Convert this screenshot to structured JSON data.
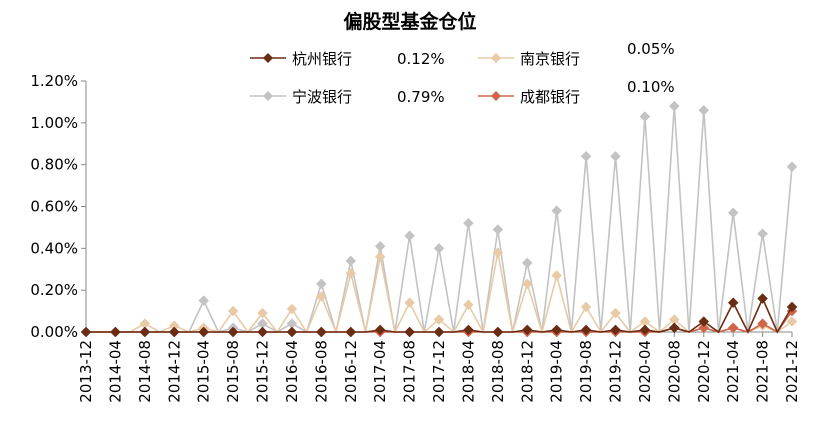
{
  "chart_data": {
    "type": "line",
    "title": "偏股型基金仓位",
    "xlabel": "",
    "ylabel": "",
    "ylim": [
      0,
      1.2
    ],
    "y_ticks": [
      "0.00%",
      "0.20%",
      "0.40%",
      "0.60%",
      "0.80%",
      "1.00%",
      "1.20%"
    ],
    "x": [
      "2013-12",
      "2014-02",
      "2014-04",
      "2014-06",
      "2014-08",
      "2014-10",
      "2014-12",
      "2015-02",
      "2015-04",
      "2015-06",
      "2015-08",
      "2015-10",
      "2015-12",
      "2016-02",
      "2016-04",
      "2016-06",
      "2016-08",
      "2016-10",
      "2016-12",
      "2017-02",
      "2017-04",
      "2017-06",
      "2017-08",
      "2017-10",
      "2017-12",
      "2018-02",
      "2018-04",
      "2018-06",
      "2018-08",
      "2018-10",
      "2018-12",
      "2019-02",
      "2019-04",
      "2019-06",
      "2019-08",
      "2019-10",
      "2019-12",
      "2020-02",
      "2020-04",
      "2020-06",
      "2020-08",
      "2020-10",
      "2020-12",
      "2021-02",
      "2021-04",
      "2021-06",
      "2021-08",
      "2021-10",
      "2021-12"
    ],
    "x_tick_labels": [
      "2013-12",
      "2014-04",
      "2014-08",
      "2014-12",
      "2015-04",
      "2015-08",
      "2015-12",
      "2016-04",
      "2016-08",
      "2016-12",
      "2017-04",
      "2017-08",
      "2017-12",
      "2018-04",
      "2018-08",
      "2018-12",
      "2019-04",
      "2019-08",
      "2019-12",
      "2020-04",
      "2020-08",
      "2020-12",
      "2021-04",
      "2021-08",
      "2021-12"
    ],
    "series": [
      {
        "name": "杭州银行",
        "label_value": "0.12%",
        "color": "#6b2c14",
        "values": [
          0,
          0,
          0,
          0,
          0,
          0,
          0,
          0,
          0,
          0,
          0,
          0,
          0,
          0,
          0,
          0,
          0,
          0,
          0,
          0,
          0.01,
          0,
          0,
          0,
          0,
          0,
          0.01,
          0,
          0,
          0,
          0.01,
          0,
          0.01,
          0,
          0.01,
          0,
          0.01,
          0,
          0.01,
          0,
          0.02,
          0,
          0.05,
          0,
          0.14,
          0,
          0.16,
          0,
          0.12
        ]
      },
      {
        "name": "南京银行",
        "label_value": "0.05%",
        "color": "#e8cba6",
        "values": [
          0,
          0,
          0,
          0,
          0.04,
          0,
          0.03,
          0,
          0.02,
          0,
          0.1,
          0,
          0.09,
          0,
          0.11,
          0,
          0.17,
          0,
          0.28,
          0,
          0.36,
          0,
          0.14,
          0,
          0.06,
          0,
          0.13,
          0,
          0.38,
          0,
          0.23,
          0,
          0.27,
          0,
          0.12,
          0,
          0.09,
          0,
          0.05,
          0,
          0.06,
          0,
          0.02,
          0,
          0.02,
          0,
          0.03,
          0,
          0.05
        ]
      },
      {
        "name": "宁波银行",
        "label_value": "0.79%",
        "color": "#c3c3c3",
        "values": [
          0,
          0,
          0,
          0,
          0,
          0,
          0,
          0,
          0.15,
          0,
          0.02,
          0,
          0.04,
          0,
          0.04,
          0,
          0.23,
          0,
          0.34,
          0,
          0.41,
          0,
          0.46,
          0,
          0.4,
          0,
          0.52,
          0,
          0.49,
          0,
          0.33,
          0,
          0.58,
          0,
          0.84,
          0,
          0.84,
          0,
          1.03,
          0,
          1.08,
          0,
          1.06,
          0,
          0.57,
          0,
          0.47,
          0,
          0.79
        ]
      },
      {
        "name": "成都银行",
        "label_value": "0.10%",
        "color": "#d0654a",
        "values": [
          0,
          0,
          0,
          0,
          0,
          0,
          0,
          0,
          0,
          0,
          0,
          0,
          0,
          0,
          0,
          0,
          0,
          0,
          0,
          0,
          0,
          0,
          0,
          0,
          0,
          0,
          0,
          0,
          0,
          0,
          0,
          0,
          0,
          0,
          0,
          0,
          0,
          0,
          0,
          0,
          0.02,
          0,
          0.02,
          0,
          0.02,
          0,
          0.04,
          0,
          0.1
        ]
      }
    ],
    "legend": "top"
  }
}
